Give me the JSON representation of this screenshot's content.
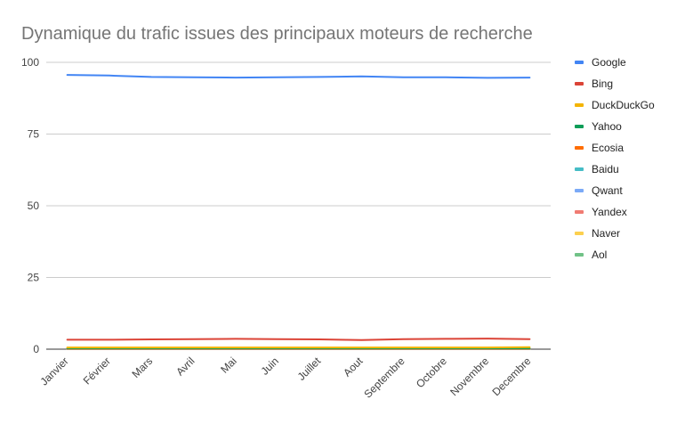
{
  "chart_data": {
    "type": "line",
    "title": "Dynamique du trafic issues des principaux moteurs de recherche",
    "xlabel": "",
    "ylabel": "",
    "ylim": [
      0,
      100
    ],
    "yticks": [
      0,
      25,
      50,
      75,
      100
    ],
    "grid": true,
    "legend_position": "right",
    "categories": [
      "Janvier",
      "Février",
      "Mars",
      "Avril",
      "Mai",
      "Juin",
      "Juillet",
      "Aout",
      "Septembre",
      "Octobre",
      "Novembre",
      "Decembre"
    ],
    "series": [
      {
        "name": "Google",
        "color": "#4285F4",
        "values": [
          95.6,
          95.4,
          94.9,
          94.8,
          94.7,
          94.8,
          94.9,
          95.1,
          94.8,
          94.8,
          94.6,
          94.7
        ]
      },
      {
        "name": "Bing",
        "color": "#DB4437",
        "values": [
          3.3,
          3.3,
          3.4,
          3.5,
          3.6,
          3.5,
          3.4,
          3.2,
          3.5,
          3.6,
          3.7,
          3.5
        ]
      },
      {
        "name": "DuckDuckGo",
        "color": "#F4B400",
        "values": [
          0.6,
          0.6,
          0.6,
          0.6,
          0.6,
          0.6,
          0.6,
          0.6,
          0.6,
          0.6,
          0.6,
          0.7
        ]
      },
      {
        "name": "Yahoo",
        "color": "#0F9D58",
        "values": [
          0.3,
          0.3,
          0.3,
          0.3,
          0.3,
          0.3,
          0.3,
          0.3,
          0.3,
          0.3,
          0.3,
          0.3
        ]
      },
      {
        "name": "Ecosia",
        "color": "#FF6D01",
        "values": [
          0.2,
          0.2,
          0.2,
          0.2,
          0.2,
          0.2,
          0.2,
          0.2,
          0.2,
          0.2,
          0.2,
          0.2
        ]
      },
      {
        "name": "Baidu",
        "color": "#46BDC6",
        "values": [
          0.1,
          0.1,
          0.1,
          0.1,
          0.1,
          0.1,
          0.1,
          0.1,
          0.1,
          0.1,
          0.1,
          0.1
        ]
      },
      {
        "name": "Qwant",
        "color": "#7BAAF7",
        "values": [
          0.1,
          0.1,
          0.1,
          0.1,
          0.1,
          0.1,
          0.1,
          0.1,
          0.1,
          0.1,
          0.1,
          0.1
        ]
      },
      {
        "name": "Yandex",
        "color": "#F07B72",
        "values": [
          0.05,
          0.05,
          0.05,
          0.05,
          0.05,
          0.05,
          0.05,
          0.05,
          0.05,
          0.05,
          0.05,
          0.05
        ]
      },
      {
        "name": "Naver",
        "color": "#FCD04F",
        "values": [
          0.02,
          0.02,
          0.02,
          0.02,
          0.02,
          0.02,
          0.02,
          0.02,
          0.02,
          0.02,
          0.02,
          0.02
        ]
      },
      {
        "name": "Aol",
        "color": "#71C287",
        "values": [
          0.01,
          0.01,
          0.01,
          0.01,
          0.01,
          0.01,
          0.01,
          0.01,
          0.01,
          0.01,
          0.01,
          0.01
        ]
      }
    ]
  }
}
